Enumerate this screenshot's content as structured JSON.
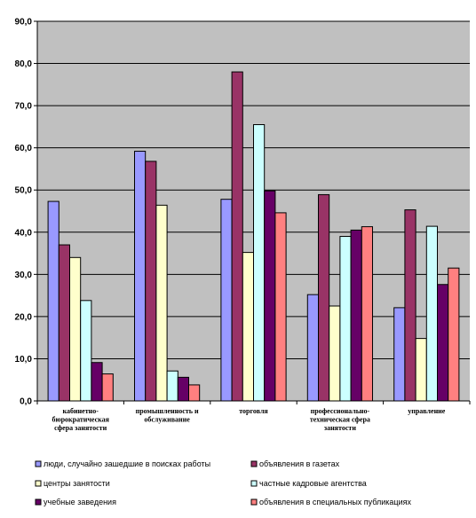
{
  "chart_data": {
    "type": "bar",
    "categories": [
      [
        "кабинетно-",
        "бюрократическая",
        "сфера занятости"
      ],
      [
        "промышленность и",
        "обслуживание"
      ],
      [
        "торговля"
      ],
      [
        "профессионально-",
        "техническая сфера",
        "занятости"
      ],
      [
        "управление"
      ]
    ],
    "ylim": [
      0,
      90
    ],
    "yticks": [
      "0,0",
      "10,0",
      "20,0",
      "30,0",
      "40,0",
      "50,0",
      "60,0",
      "70,0",
      "80,0",
      "90,0"
    ],
    "grid": true,
    "legend_position": "bottom",
    "series": [
      {
        "name": "люди, случайно зашедшие в поисках работы",
        "color": "#9999ff",
        "values": [
          47.3,
          59.2,
          47.8,
          25.2,
          22.1
        ]
      },
      {
        "name": "объявления в газетах",
        "color": "#993366",
        "values": [
          37.0,
          56.8,
          78.0,
          48.9,
          45.3
        ]
      },
      {
        "name": "центры занятости",
        "color": "#ffffcc",
        "values": [
          34.0,
          46.4,
          35.2,
          22.5,
          14.8
        ]
      },
      {
        "name": "частные кадровые агентства",
        "color": "#ccffff",
        "values": [
          23.8,
          7.1,
          65.5,
          39.0,
          41.4
        ]
      },
      {
        "name": "учебные заведения",
        "color": "#660066",
        "values": [
          9.1,
          5.6,
          49.8,
          40.5,
          27.6
        ]
      },
      {
        "name": "объявления в специальных публикациях",
        "color": "#ff8080",
        "values": [
          6.4,
          3.8,
          44.6,
          41.3,
          31.5
        ]
      }
    ]
  }
}
